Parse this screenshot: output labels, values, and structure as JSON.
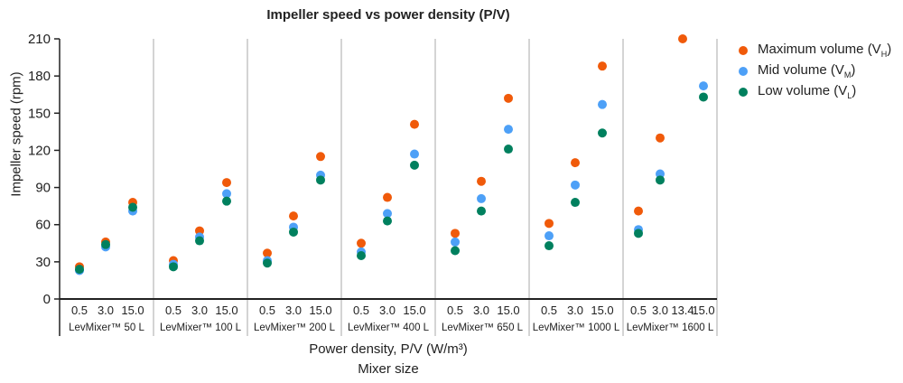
{
  "chart_data": {
    "type": "scatter",
    "title": "Impeller speed vs power density (P/V)",
    "xlabel": "Power density, P/V (W/m³)",
    "xlabel2": "Mixer size",
    "ylabel": "Impeller speed (rpm)",
    "ylim": [
      0,
      210
    ],
    "yticks": [
      0,
      30,
      60,
      90,
      120,
      150,
      180,
      210
    ],
    "grid": false,
    "legend_position": "right",
    "series_meta": [
      {
        "key": "max",
        "name": "Maximum volume (V",
        "sub": "H",
        "color": "#f05a0a"
      },
      {
        "key": "mid",
        "name": "Mid volume (V",
        "sub": "M",
        "color": "#4da0f7"
      },
      {
        "key": "low",
        "name": "Low volume (V",
        "sub": "L",
        "color": "#00805e"
      }
    ],
    "groups": [
      {
        "label": "LevMixer™ 50 L",
        "categories": [
          "0.5",
          "3.0",
          "15.0"
        ],
        "max": [
          26,
          46,
          78
        ],
        "mid": [
          23,
          42,
          71
        ],
        "low": [
          24,
          44,
          74
        ]
      },
      {
        "label": "LevMixer™ 100 L",
        "categories": [
          "0.5",
          "3.0",
          "15.0"
        ],
        "max": [
          31,
          55,
          94
        ],
        "mid": [
          28,
          50,
          85
        ],
        "low": [
          26,
          47,
          79
        ]
      },
      {
        "label": "LevMixer™ 200 L",
        "categories": [
          "0.5",
          "3.0",
          "15.0"
        ],
        "max": [
          37,
          67,
          115
        ],
        "mid": [
          31,
          58,
          100
        ],
        "low": [
          29,
          54,
          96
        ]
      },
      {
        "label": "LevMixer™ 400 L",
        "categories": [
          "0.5",
          "3.0",
          "15.0"
        ],
        "max": [
          45,
          82,
          141
        ],
        "mid": [
          38,
          69,
          117
        ],
        "low": [
          35,
          63,
          108
        ]
      },
      {
        "label": "LevMixer™ 650 L",
        "categories": [
          "0.5",
          "3.0",
          "15.0"
        ],
        "max": [
          53,
          95,
          162
        ],
        "mid": [
          46,
          81,
          137
        ],
        "low": [
          39,
          71,
          121
        ]
      },
      {
        "label": "LevMixer™ 1000 L",
        "categories": [
          "0.5",
          "3.0",
          "15.0"
        ],
        "max": [
          61,
          110,
          188
        ],
        "mid": [
          51,
          92,
          157
        ],
        "low": [
          43,
          78,
          134
        ]
      },
      {
        "label": "LevMixer™ 1600 L",
        "categories": [
          "0.5",
          "3.0",
          "13.4",
          "15.0"
        ],
        "max": [
          71,
          130,
          210,
          null
        ],
        "mid": [
          56,
          101,
          null,
          172
        ],
        "low": [
          53,
          96,
          null,
          163
        ]
      }
    ]
  }
}
